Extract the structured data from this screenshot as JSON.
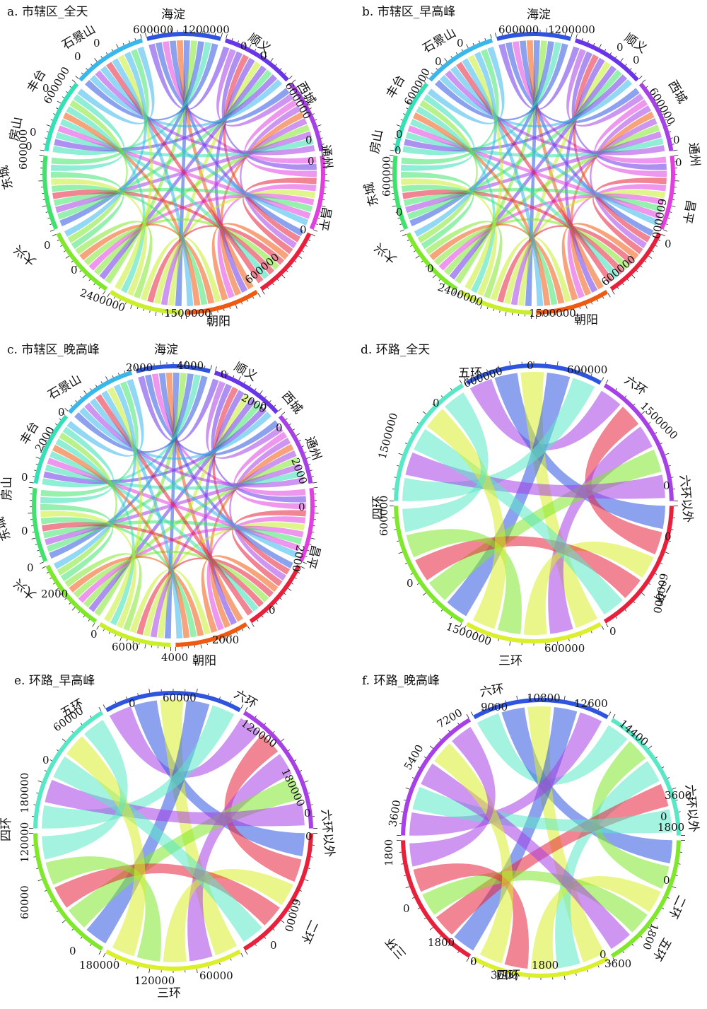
{
  "figure": {
    "panels": [
      {
        "id": "a",
        "title": "a. 市辖区_全天",
        "type": "chord",
        "segments": [
          {
            "name": "海淀",
            "color": "#2f55e0"
          },
          {
            "name": "顺义",
            "color": "#6a35e8"
          },
          {
            "name": "西城",
            "color": "#a740e6"
          },
          {
            "name": "通州",
            "color": "#e13fe0"
          },
          {
            "name": "昌平",
            "color": "#e8203b"
          },
          {
            "name": "朝阳",
            "color": "#f05a10"
          },
          {
            "name": "大兴",
            "color": "#c8ef2a"
          },
          {
            "name": "东城",
            "color": "#7fe82a"
          },
          {
            "name": "房山",
            "color": "#3fe36c"
          },
          {
            "name": "丰台",
            "color": "#34e0b6"
          },
          {
            "name": "石景山",
            "color": "#39b7ea"
          }
        ],
        "tick_labels": [
          "600000",
          "1200000",
          "0",
          "0",
          "600000",
          "0",
          "0",
          "0",
          "600000",
          "1500000",
          "2400000",
          "0",
          "0",
          "0",
          "600000",
          "0",
          "0",
          "600000",
          "0",
          "0"
        ]
      },
      {
        "id": "b",
        "title": "b. 市辖区_早高峰",
        "type": "chord",
        "segments": [
          {
            "name": "海淀",
            "color": "#2f55e0"
          },
          {
            "name": "顺义",
            "color": "#6a35e8"
          },
          {
            "name": "西城",
            "color": "#a740e6"
          },
          {
            "name": "通州",
            "color": "#e13fe0"
          },
          {
            "name": "昌平",
            "color": "#e8203b"
          },
          {
            "name": "朝阳",
            "color": "#f05a10"
          },
          {
            "name": "大兴",
            "color": "#c8ef2a"
          },
          {
            "name": "东城",
            "color": "#7fe82a"
          },
          {
            "name": "房山",
            "color": "#3fe36c"
          },
          {
            "name": "丰台",
            "color": "#34e0b6"
          },
          {
            "name": "石景山",
            "color": "#39b7ea"
          }
        ],
        "tick_labels": [
          "600000",
          "1200000",
          "0",
          "0",
          "600000",
          "0",
          "0",
          "600000",
          "0",
          "600000",
          "1500000",
          "2400000",
          "0",
          "0",
          "600000",
          "0",
          "0",
          "600000",
          "0",
          "0"
        ]
      },
      {
        "id": "c",
        "title": "c. 市辖区_晚高峰",
        "type": "chord",
        "segments": [
          {
            "name": "海淀",
            "color": "#2f55e0"
          },
          {
            "name": "顺义",
            "color": "#6a35e8"
          },
          {
            "name": "西城",
            "color": "#a740e6"
          },
          {
            "name": "通州",
            "color": "#e13fe0"
          },
          {
            "name": "昌平",
            "color": "#e8203b"
          },
          {
            "name": "朝阳",
            "color": "#f05a10"
          },
          {
            "name": "大兴",
            "color": "#c8ef2a"
          },
          {
            "name": "东城",
            "color": "#7fe82a"
          },
          {
            "name": "房山",
            "color": "#3fe36c"
          },
          {
            "name": "丰台",
            "color": "#34e0b6"
          },
          {
            "name": "石景山",
            "color": "#39b7ea"
          }
        ],
        "tick_labels": [
          "2000",
          "4000",
          "0",
          "2000",
          "0",
          "0",
          "2000",
          "0",
          "2000",
          "0",
          "2000",
          "4000",
          "6000",
          "0",
          "2000",
          "0",
          "0",
          "0",
          "2000",
          "0"
        ]
      },
      {
        "id": "d",
        "title": "d. 环路_全天",
        "type": "chord",
        "segments": [
          {
            "name": "六环",
            "color": "#2f55e0"
          },
          {
            "name": "六环以外",
            "color": "#a740e6"
          },
          {
            "name": "二环",
            "color": "#e8203b"
          },
          {
            "name": "三环",
            "color": "#dbef2a"
          },
          {
            "name": "四环",
            "color": "#7fe82a"
          },
          {
            "name": "五环",
            "color": "#59e8c6"
          }
        ],
        "tick_labels": [
          "0",
          "600000",
          "1500000",
          "0",
          "0",
          "600000",
          "0",
          "600000",
          "1500000",
          "0",
          "600000",
          "1500000",
          "0",
          "600000"
        ]
      },
      {
        "id": "e",
        "title": "e. 环路_早高峰",
        "type": "chord",
        "segments": [
          {
            "name": "六环",
            "color": "#2f55e0"
          },
          {
            "name": "六环以外",
            "color": "#a740e6"
          },
          {
            "name": "二环",
            "color": "#e8203b"
          },
          {
            "name": "三环",
            "color": "#dbef2a"
          },
          {
            "name": "四环",
            "color": "#7fe82a"
          },
          {
            "name": "五环",
            "color": "#59e8c6"
          }
        ],
        "tick_labels": [
          "60000",
          "120000",
          "180000",
          "0",
          "0",
          "60000",
          "0",
          "60000",
          "120000",
          "180000",
          "0",
          "60000",
          "120000",
          "180000",
          "0",
          "60000",
          "0"
        ]
      },
      {
        "id": "f",
        "title": "f. 环路_晚高峰",
        "type": "chord",
        "segments": [
          {
            "name": "四环",
            "color": "#2f55e0"
          },
          {
            "name": "三环",
            "color": "#59e8c6"
          },
          {
            "name": "二环",
            "color": "#7fe82a"
          },
          {
            "name": "六环以外",
            "color": "#dbef2a"
          },
          {
            "name": "六环",
            "color": "#e8203b"
          },
          {
            "name": "五环",
            "color": "#a740e6"
          }
        ],
        "tick_labels": [
          "9000",
          "10800",
          "12600",
          "14400",
          "7200",
          "5400",
          "3600",
          "1800",
          "0",
          "1800",
          "0",
          "1800",
          "0",
          "3600",
          "0",
          "3600",
          "1800",
          "0",
          "3600",
          "1800"
        ]
      }
    ]
  },
  "chart_data": [
    {
      "type": "chord",
      "title": "a. 市辖区_全天",
      "categories": [
        "海淀",
        "顺义",
        "西城",
        "通州",
        "昌平",
        "朝阳",
        "大兴",
        "东城",
        "房山",
        "丰台",
        "石景山"
      ]
    },
    {
      "type": "chord",
      "title": "b. 市辖区_早高峰",
      "categories": [
        "海淀",
        "顺义",
        "西城",
        "通州",
        "昌平",
        "朝阳",
        "大兴",
        "东城",
        "房山",
        "丰台",
        "石景山"
      ]
    },
    {
      "type": "chord",
      "title": "c. 市辖区_晚高峰",
      "categories": [
        "海淀",
        "顺义",
        "西城",
        "通州",
        "昌平",
        "朝阳",
        "大兴",
        "东城",
        "房山",
        "丰台",
        "石景山"
      ]
    },
    {
      "type": "chord",
      "title": "d. 环路_全天",
      "categories": [
        "六环",
        "六环以外",
        "二环",
        "三环",
        "四环",
        "五环"
      ]
    },
    {
      "type": "chord",
      "title": "e. 环路_早高峰",
      "categories": [
        "六环",
        "六环以外",
        "二环",
        "三环",
        "四环",
        "五环"
      ]
    },
    {
      "type": "chord",
      "title": "f. 环路_晚高峰",
      "categories": [
        "四环",
        "三环",
        "二环",
        "六环以外",
        "六环",
        "五环"
      ]
    }
  ]
}
